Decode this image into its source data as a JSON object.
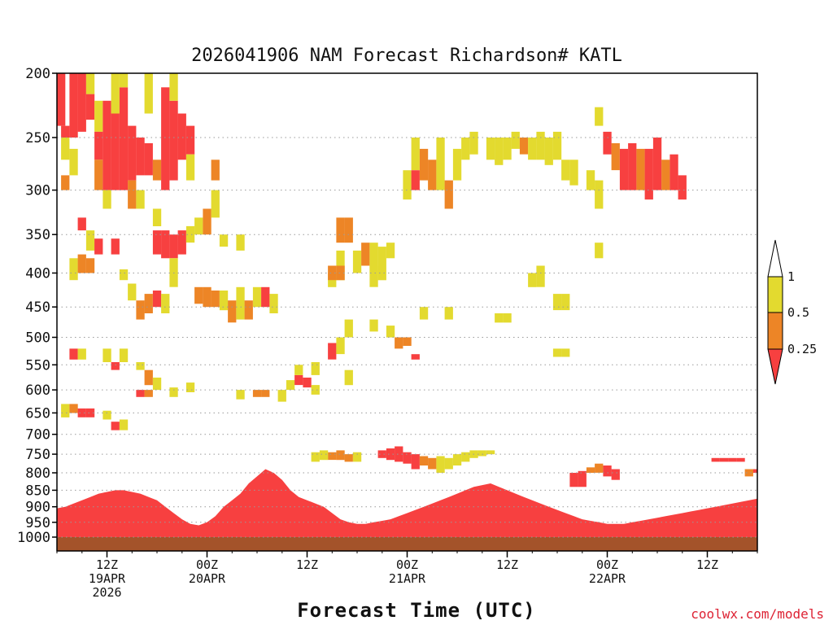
{
  "chart_data": {
    "type": "heatmap",
    "title": "2026041906 NAM Forecast Richardson# KATL",
    "xlabel": "Forecast Time (UTC)",
    "ylabel": "",
    "credit": "coolwx.com/models",
    "x_unit": "forecast hour",
    "xlim": [
      0,
      84
    ],
    "ylim": [
      1000,
      200
    ],
    "y_ticks": [
      "200",
      "250",
      "300",
      "350",
      "400",
      "450",
      "500",
      "550",
      "600",
      "650",
      "700",
      "750",
      "800",
      "850",
      "900",
      "950",
      "1000"
    ],
    "x_ticks": [
      {
        "hour": 6,
        "lines": [
          "12Z",
          "19APR",
          "2026"
        ]
      },
      {
        "hour": 18,
        "lines": [
          "00Z",
          "20APR"
        ]
      },
      {
        "hour": 30,
        "lines": [
          "12Z"
        ]
      },
      {
        "hour": 42,
        "lines": [
          "00Z",
          "21APR"
        ]
      },
      {
        "hour": 54,
        "lines": [
          "12Z"
        ]
      },
      {
        "hour": 66,
        "lines": [
          "00Z",
          "22APR"
        ]
      },
      {
        "hour": 78,
        "lines": [
          "12Z"
        ]
      }
    ],
    "gridlines_at": [
      "250",
      "300",
      "350",
      "400",
      "450",
      "500",
      "550",
      "600",
      "650",
      "700",
      "750",
      "800",
      "850",
      "900",
      "950",
      "1000"
    ],
    "legend": {
      "levels": [
        "1",
        "0.5",
        "0.25"
      ],
      "bins": [
        {
          "label": "> 1",
          "color": "#ffffff"
        },
        {
          "label": "0.5 - 1",
          "color": "#e3da2f"
        },
        {
          "label": "0.25 - 0.5",
          "color": "#ed8526"
        },
        {
          "label": "< 0.25",
          "color": "#f74040"
        }
      ]
    },
    "colors": {
      "low": "#f74040",
      "mid": "#ed8526",
      "high": "#e3da2f",
      "ground": "#a4532a"
    },
    "cells": [
      {
        "t": 0.5,
        "p1": 200,
        "p2": 240,
        "c": "low"
      },
      {
        "t": 1,
        "p1": 240,
        "p2": 250,
        "c": "low"
      },
      {
        "t": 2,
        "p1": 200,
        "p2": 250,
        "c": "low"
      },
      {
        "t": 3,
        "p1": 200,
        "p2": 245,
        "c": "low"
      },
      {
        "t": 4,
        "p1": 215,
        "p2": 235,
        "c": "low"
      },
      {
        "t": 4,
        "p1": 200,
        "p2": 215,
        "c": "high"
      },
      {
        "t": 1,
        "p1": 250,
        "p2": 270,
        "c": "high"
      },
      {
        "t": 2,
        "p1": 260,
        "p2": 285,
        "c": "high"
      },
      {
        "t": 1,
        "p1": 285,
        "p2": 300,
        "c": "mid"
      },
      {
        "t": 5,
        "p1": 220,
        "p2": 245,
        "c": "high"
      },
      {
        "t": 5,
        "p1": 245,
        "p2": 270,
        "c": "low"
      },
      {
        "t": 5,
        "p1": 270,
        "p2": 300,
        "c": "mid"
      },
      {
        "t": 6,
        "p1": 220,
        "p2": 300,
        "c": "low"
      },
      {
        "t": 6,
        "p1": 300,
        "p2": 320,
        "c": "high"
      },
      {
        "t": 7,
        "p1": 230,
        "p2": 300,
        "c": "low"
      },
      {
        "t": 7,
        "p1": 200,
        "p2": 230,
        "c": "high"
      },
      {
        "t": 8,
        "p1": 210,
        "p2": 300,
        "c": "low"
      },
      {
        "t": 8,
        "p1": 200,
        "p2": 210,
        "c": "high"
      },
      {
        "t": 9,
        "p1": 240,
        "p2": 290,
        "c": "low"
      },
      {
        "t": 9,
        "p1": 290,
        "p2": 320,
        "c": "mid"
      },
      {
        "t": 10,
        "p1": 250,
        "p2": 285,
        "c": "low"
      },
      {
        "t": 11,
        "p1": 255,
        "p2": 285,
        "c": "low"
      },
      {
        "t": 11,
        "p1": 200,
        "p2": 230,
        "c": "high"
      },
      {
        "t": 12,
        "p1": 270,
        "p2": 290,
        "c": "mid"
      },
      {
        "t": 13,
        "p1": 210,
        "p2": 300,
        "c": "low"
      },
      {
        "t": 14,
        "p1": 220,
        "p2": 290,
        "c": "low"
      },
      {
        "t": 14,
        "p1": 200,
        "p2": 220,
        "c": "high"
      },
      {
        "t": 15,
        "p1": 230,
        "p2": 270,
        "c": "low"
      },
      {
        "t": 16,
        "p1": 240,
        "p2": 265,
        "c": "low"
      },
      {
        "t": 16,
        "p1": 265,
        "p2": 290,
        "c": "high"
      },
      {
        "t": 10,
        "p1": 300,
        "p2": 320,
        "c": "high"
      },
      {
        "t": 12,
        "p1": 320,
        "p2": 340,
        "c": "high"
      },
      {
        "t": 3,
        "p1": 330,
        "p2": 345,
        "c": "low"
      },
      {
        "t": 4,
        "p1": 345,
        "p2": 370,
        "c": "high"
      },
      {
        "t": 5,
        "p1": 355,
        "p2": 375,
        "c": "low"
      },
      {
        "t": 7,
        "p1": 355,
        "p2": 375,
        "c": "low"
      },
      {
        "t": 12,
        "p1": 345,
        "p2": 375,
        "c": "low"
      },
      {
        "t": 13,
        "p1": 345,
        "p2": 380,
        "c": "low"
      },
      {
        "t": 14,
        "p1": 350,
        "p2": 380,
        "c": "low"
      },
      {
        "t": 15,
        "p1": 345,
        "p2": 375,
        "c": "low"
      },
      {
        "t": 16,
        "p1": 340,
        "p2": 360,
        "c": "high"
      },
      {
        "t": 17,
        "p1": 330,
        "p2": 350,
        "c": "high"
      },
      {
        "t": 18,
        "p1": 320,
        "p2": 350,
        "c": "mid"
      },
      {
        "t": 19,
        "p1": 300,
        "p2": 330,
        "c": "high"
      },
      {
        "t": 19,
        "p1": 270,
        "p2": 290,
        "c": "mid"
      },
      {
        "t": 20,
        "p1": 350,
        "p2": 365,
        "c": "high"
      },
      {
        "t": 22,
        "p1": 350,
        "p2": 370,
        "c": "high"
      },
      {
        "t": 2,
        "p1": 380,
        "p2": 410,
        "c": "high"
      },
      {
        "t": 3,
        "p1": 375,
        "p2": 400,
        "c": "mid"
      },
      {
        "t": 4,
        "p1": 380,
        "p2": 400,
        "c": "mid"
      },
      {
        "t": 8,
        "p1": 395,
        "p2": 410,
        "c": "high"
      },
      {
        "t": 9,
        "p1": 415,
        "p2": 440,
        "c": "high"
      },
      {
        "t": 10,
        "p1": 440,
        "p2": 470,
        "c": "mid"
      },
      {
        "t": 11,
        "p1": 430,
        "p2": 460,
        "c": "mid"
      },
      {
        "t": 12,
        "p1": 425,
        "p2": 450,
        "c": "low"
      },
      {
        "t": 13,
        "p1": 430,
        "p2": 460,
        "c": "high"
      },
      {
        "t": 14,
        "p1": 380,
        "p2": 420,
        "c": "high"
      },
      {
        "t": 17,
        "p1": 420,
        "p2": 445,
        "c": "mid"
      },
      {
        "t": 18,
        "p1": 420,
        "p2": 450,
        "c": "mid"
      },
      {
        "t": 19,
        "p1": 425,
        "p2": 450,
        "c": "mid"
      },
      {
        "t": 20,
        "p1": 425,
        "p2": 455,
        "c": "high"
      },
      {
        "t": 21,
        "p1": 440,
        "p2": 475,
        "c": "mid"
      },
      {
        "t": 22,
        "p1": 420,
        "p2": 470,
        "c": "high"
      },
      {
        "t": 23,
        "p1": 440,
        "p2": 470,
        "c": "mid"
      },
      {
        "t": 24,
        "p1": 420,
        "p2": 450,
        "c": "high"
      },
      {
        "t": 25,
        "p1": 420,
        "p2": 450,
        "c": "low"
      },
      {
        "t": 26,
        "p1": 430,
        "p2": 460,
        "c": "high"
      },
      {
        "t": 2,
        "p1": 520,
        "p2": 540,
        "c": "low"
      },
      {
        "t": 3,
        "p1": 520,
        "p2": 540,
        "c": "high"
      },
      {
        "t": 6,
        "p1": 520,
        "p2": 545,
        "c": "high"
      },
      {
        "t": 7,
        "p1": 545,
        "p2": 560,
        "c": "low"
      },
      {
        "t": 8,
        "p1": 520,
        "p2": 545,
        "c": "high"
      },
      {
        "t": 10,
        "p1": 545,
        "p2": 560,
        "c": "high"
      },
      {
        "t": 11,
        "p1": 560,
        "p2": 590,
        "c": "mid"
      },
      {
        "t": 12,
        "p1": 575,
        "p2": 600,
        "c": "high"
      },
      {
        "t": 10,
        "p1": 600,
        "p2": 615,
        "c": "low"
      },
      {
        "t": 11,
        "p1": 600,
        "p2": 615,
        "c": "mid"
      },
      {
        "t": 14,
        "p1": 595,
        "p2": 615,
        "c": "high"
      },
      {
        "t": 16,
        "p1": 585,
        "p2": 605,
        "c": "high"
      },
      {
        "t": 22,
        "p1": 600,
        "p2": 620,
        "c": "high"
      },
      {
        "t": 24,
        "p1": 600,
        "p2": 615,
        "c": "mid"
      },
      {
        "t": 25,
        "p1": 600,
        "p2": 615,
        "c": "mid"
      },
      {
        "t": 27,
        "p1": 600,
        "p2": 625,
        "c": "high"
      },
      {
        "t": 28,
        "p1": 580,
        "p2": 600,
        "c": "high"
      },
      {
        "t": 29,
        "p1": 570,
        "p2": 590,
        "c": "low"
      },
      {
        "t": 30,
        "p1": 575,
        "p2": 595,
        "c": "low"
      },
      {
        "t": 29,
        "p1": 550,
        "p2": 570,
        "c": "high"
      },
      {
        "t": 31,
        "p1": 545,
        "p2": 570,
        "c": "high"
      },
      {
        "t": 31,
        "p1": 590,
        "p2": 610,
        "c": "high"
      },
      {
        "t": 1,
        "p1": 630,
        "p2": 660,
        "c": "high"
      },
      {
        "t": 2,
        "p1": 630,
        "p2": 650,
        "c": "mid"
      },
      {
        "t": 3,
        "p1": 640,
        "p2": 660,
        "c": "low"
      },
      {
        "t": 4,
        "p1": 640,
        "p2": 660,
        "c": "low"
      },
      {
        "t": 6,
        "p1": 645,
        "p2": 665,
        "c": "high"
      },
      {
        "t": 7,
        "p1": 670,
        "p2": 690,
        "c": "low"
      },
      {
        "t": 8,
        "p1": 665,
        "p2": 690,
        "c": "high"
      },
      {
        "t": 33,
        "p1": 400,
        "p2": 420,
        "c": "high"
      },
      {
        "t": 34,
        "p1": 370,
        "p2": 410,
        "c": "high"
      },
      {
        "t": 33,
        "p1": 510,
        "p2": 540,
        "c": "low"
      },
      {
        "t": 34,
        "p1": 500,
        "p2": 530,
        "c": "high"
      },
      {
        "t": 35,
        "p1": 470,
        "p2": 500,
        "c": "high"
      },
      {
        "t": 35,
        "p1": 560,
        "p2": 590,
        "c": "high"
      },
      {
        "t": 34,
        "p1": 330,
        "p2": 360,
        "c": "mid"
      },
      {
        "t": 35,
        "p1": 330,
        "p2": 360,
        "c": "mid"
      },
      {
        "t": 33,
        "p1": 390,
        "p2": 410,
        "c": "mid"
      },
      {
        "t": 34,
        "p1": 390,
        "p2": 410,
        "c": "mid"
      },
      {
        "t": 36,
        "p1": 370,
        "p2": 400,
        "c": "high"
      },
      {
        "t": 37,
        "p1": 360,
        "p2": 390,
        "c": "mid"
      },
      {
        "t": 38,
        "p1": 360,
        "p2": 400,
        "c": "high"
      },
      {
        "t": 39,
        "p1": 365,
        "p2": 410,
        "c": "high"
      },
      {
        "t": 40,
        "p1": 360,
        "p2": 380,
        "c": "high"
      },
      {
        "t": 38,
        "p1": 390,
        "p2": 420,
        "c": "high"
      },
      {
        "t": 41,
        "p1": 500,
        "p2": 520,
        "c": "mid"
      },
      {
        "t": 42,
        "p1": 500,
        "p2": 515,
        "c": "mid"
      },
      {
        "t": 43,
        "p1": 530,
        "p2": 540,
        "c": "low"
      },
      {
        "t": 42,
        "p1": 280,
        "p2": 310,
        "c": "high"
      },
      {
        "t": 43,
        "p1": 250,
        "p2": 280,
        "c": "high"
      },
      {
        "t": 43,
        "p1": 280,
        "p2": 300,
        "c": "low"
      },
      {
        "t": 44,
        "p1": 260,
        "p2": 290,
        "c": "mid"
      },
      {
        "t": 45,
        "p1": 270,
        "p2": 300,
        "c": "mid"
      },
      {
        "t": 46,
        "p1": 250,
        "p2": 300,
        "c": "high"
      },
      {
        "t": 47,
        "p1": 290,
        "p2": 320,
        "c": "mid"
      },
      {
        "t": 48,
        "p1": 260,
        "p2": 290,
        "c": "high"
      },
      {
        "t": 49,
        "p1": 250,
        "p2": 270,
        "c": "high"
      },
      {
        "t": 50,
        "p1": 245,
        "p2": 265,
        "c": "high"
      },
      {
        "t": 52,
        "p1": 250,
        "p2": 270,
        "c": "high"
      },
      {
        "t": 53,
        "p1": 250,
        "p2": 275,
        "c": "high"
      },
      {
        "t": 54,
        "p1": 250,
        "p2": 270,
        "c": "high"
      },
      {
        "t": 55,
        "p1": 245,
        "p2": 260,
        "c": "high"
      },
      {
        "t": 56,
        "p1": 250,
        "p2": 265,
        "c": "mid"
      },
      {
        "t": 57,
        "p1": 250,
        "p2": 270,
        "c": "high"
      },
      {
        "t": 58,
        "p1": 245,
        "p2": 270,
        "c": "high"
      },
      {
        "t": 59,
        "p1": 250,
        "p2": 275,
        "c": "high"
      },
      {
        "t": 60,
        "p1": 245,
        "p2": 270,
        "c": "high"
      },
      {
        "t": 61,
        "p1": 270,
        "p2": 290,
        "c": "high"
      },
      {
        "t": 62,
        "p1": 270,
        "p2": 295,
        "c": "high"
      },
      {
        "t": 64,
        "p1": 280,
        "p2": 300,
        "c": "high"
      },
      {
        "t": 65,
        "p1": 290,
        "p2": 320,
        "c": "high"
      },
      {
        "t": 66,
        "p1": 245,
        "p2": 265,
        "c": "low"
      },
      {
        "t": 67,
        "p1": 255,
        "p2": 280,
        "c": "mid"
      },
      {
        "t": 68,
        "p1": 260,
        "p2": 300,
        "c": "low"
      },
      {
        "t": 69,
        "p1": 255,
        "p2": 300,
        "c": "low"
      },
      {
        "t": 70,
        "p1": 260,
        "p2": 300,
        "c": "mid"
      },
      {
        "t": 71,
        "p1": 260,
        "p2": 310,
        "c": "low"
      },
      {
        "t": 72,
        "p1": 250,
        "p2": 300,
        "c": "low"
      },
      {
        "t": 73,
        "p1": 270,
        "p2": 300,
        "c": "mid"
      },
      {
        "t": 74,
        "p1": 265,
        "p2": 300,
        "c": "low"
      },
      {
        "t": 75,
        "p1": 285,
        "p2": 310,
        "c": "low"
      },
      {
        "t": 65,
        "p1": 225,
        "p2": 240,
        "c": "high"
      },
      {
        "t": 60,
        "p1": 430,
        "p2": 455,
        "c": "high"
      },
      {
        "t": 61,
        "p1": 430,
        "p2": 455,
        "c": "high"
      },
      {
        "t": 60,
        "p1": 520,
        "p2": 535,
        "c": "high"
      },
      {
        "t": 61,
        "p1": 520,
        "p2": 535,
        "c": "high"
      },
      {
        "t": 53,
        "p1": 460,
        "p2": 475,
        "c": "high"
      },
      {
        "t": 54,
        "p1": 460,
        "p2": 475,
        "c": "high"
      },
      {
        "t": 57,
        "p1": 400,
        "p2": 420,
        "c": "high"
      },
      {
        "t": 58,
        "p1": 390,
        "p2": 420,
        "c": "high"
      },
      {
        "t": 65,
        "p1": 360,
        "p2": 380,
        "c": "high"
      },
      {
        "t": 47,
        "p1": 450,
        "p2": 470,
        "c": "high"
      },
      {
        "t": 44,
        "p1": 450,
        "p2": 470,
        "c": "high"
      },
      {
        "t": 38,
        "p1": 470,
        "p2": 490,
        "c": "high"
      },
      {
        "t": 40,
        "p1": 480,
        "p2": 500,
        "c": "high"
      },
      {
        "t": 39,
        "p1": 740,
        "p2": 760,
        "c": "low"
      },
      {
        "t": 40,
        "p1": 735,
        "p2": 765,
        "c": "low"
      },
      {
        "t": 41,
        "p1": 730,
        "p2": 770,
        "c": "low"
      },
      {
        "t": 42,
        "p1": 745,
        "p2": 775,
        "c": "low"
      },
      {
        "t": 43,
        "p1": 750,
        "p2": 790,
        "c": "low"
      },
      {
        "t": 44,
        "p1": 755,
        "p2": 780,
        "c": "mid"
      },
      {
        "t": 45,
        "p1": 760,
        "p2": 790,
        "c": "mid"
      },
      {
        "t": 46,
        "p1": 755,
        "p2": 800,
        "c": "high"
      },
      {
        "t": 47,
        "p1": 760,
        "p2": 790,
        "c": "high"
      },
      {
        "t": 48,
        "p1": 750,
        "p2": 780,
        "c": "high"
      },
      {
        "t": 49,
        "p1": 745,
        "p2": 770,
        "c": "high"
      },
      {
        "t": 50,
        "p1": 740,
        "p2": 760,
        "c": "high"
      },
      {
        "t": 51,
        "p1": 740,
        "p2": 755,
        "c": "high"
      },
      {
        "t": 52,
        "p1": 740,
        "p2": 750,
        "c": "high"
      },
      {
        "t": 33,
        "p1": 745,
        "p2": 765,
        "c": "mid"
      },
      {
        "t": 34,
        "p1": 740,
        "p2": 765,
        "c": "mid"
      },
      {
        "t": 35,
        "p1": 750,
        "p2": 770,
        "c": "mid"
      },
      {
        "t": 36,
        "p1": 745,
        "p2": 770,
        "c": "high"
      },
      {
        "t": 31,
        "p1": 745,
        "p2": 770,
        "c": "high"
      },
      {
        "t": 32,
        "p1": 740,
        "p2": 765,
        "c": "high"
      },
      {
        "t": 64,
        "p1": 785,
        "p2": 800,
        "c": "mid"
      },
      {
        "t": 65,
        "p1": 775,
        "p2": 800,
        "c": "mid"
      },
      {
        "t": 66,
        "p1": 780,
        "p2": 810,
        "c": "low"
      },
      {
        "t": 67,
        "p1": 790,
        "p2": 820,
        "c": "low"
      },
      {
        "t": 62,
        "p1": 800,
        "p2": 840,
        "c": "low"
      },
      {
        "t": 63,
        "p1": 795,
        "p2": 840,
        "c": "low"
      },
      {
        "t": 79,
        "p1": 760,
        "p2": 770,
        "c": "low"
      },
      {
        "t": 80,
        "p1": 760,
        "p2": 770,
        "c": "low"
      },
      {
        "t": 81,
        "p1": 760,
        "p2": 770,
        "c": "low"
      },
      {
        "t": 82,
        "p1": 760,
        "p2": 770,
        "c": "low"
      },
      {
        "t": 83.5,
        "p1": 790,
        "p2": 800,
        "c": "low"
      },
      {
        "t": 83,
        "p1": 790,
        "p2": 810,
        "c": "mid"
      }
    ]
  }
}
